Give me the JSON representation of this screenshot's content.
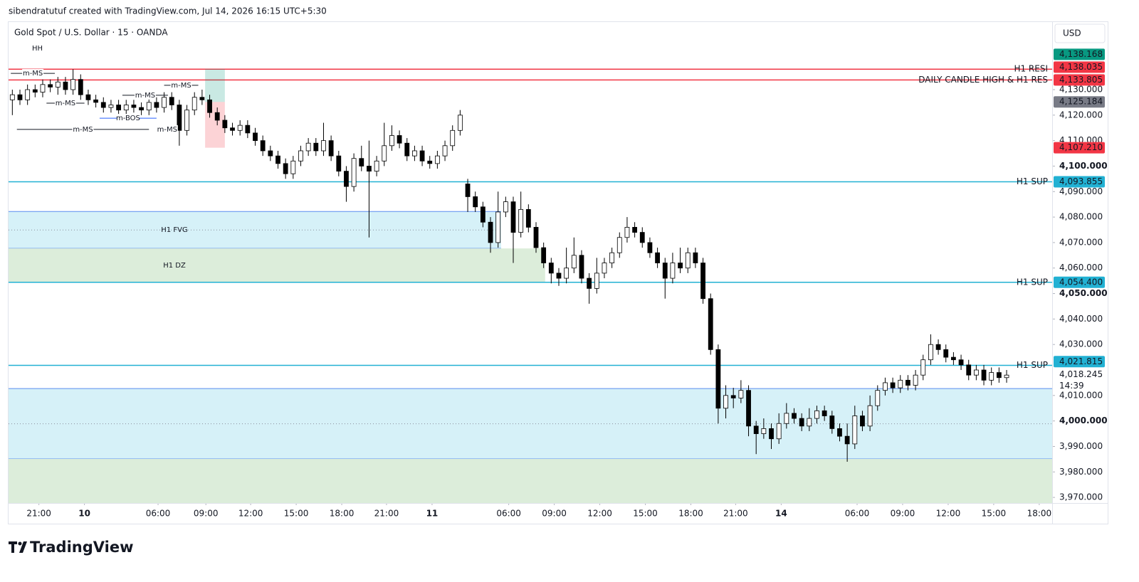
{
  "header": "sibendratutuf created with TradingView.com, Jul 14, 2026 16:15 UTC+5:30",
  "logo": "TradingView",
  "chart_data": {
    "type": "candlestick",
    "title": "Gold Spot / U.S. Dollar · 15 · OANDA",
    "currency": "USD",
    "up_color": "#ffffff",
    "down_color": "#000000",
    "border_color": "#000000",
    "label_color": "#f23645",
    "xlim": [
      -0.5,
      137
    ],
    "ylim": [
      3967.8,
      4156.8
    ],
    "xticks": [
      {
        "value": 3.5,
        "label": "21:00"
      },
      {
        "value": 9.5,
        "label": "10"
      },
      {
        "value": 19.2,
        "label": "06:00"
      },
      {
        "value": 25.5,
        "label": "09:00"
      },
      {
        "value": 31.4,
        "label": "12:00"
      },
      {
        "value": 37.4,
        "label": "15:00"
      },
      {
        "value": 43.4,
        "label": "18:00"
      },
      {
        "value": 49.3,
        "label": "21:00"
      },
      {
        "value": 55.3,
        "label": "11"
      },
      {
        "value": 65.4,
        "label": "06:00"
      },
      {
        "value": 71.4,
        "label": "09:00"
      },
      {
        "value": 77.4,
        "label": "12:00"
      },
      {
        "value": 83.4,
        "label": "15:00"
      },
      {
        "value": 89.4,
        "label": "18:00"
      },
      {
        "value": 95.3,
        "label": "21:00"
      },
      {
        "value": 101.3,
        "label": "14"
      },
      {
        "value": 111.3,
        "label": "06:00"
      },
      {
        "value": 117.3,
        "label": "09:00"
      },
      {
        "value": 123.3,
        "label": "12:00"
      },
      {
        "value": 129.3,
        "label": "15:00"
      },
      {
        "value": 135.3,
        "label": "18:00"
      }
    ],
    "yticks": [
      {
        "value": 4130,
        "label": "4,130.000"
      },
      {
        "value": 4120,
        "label": "4,120.000"
      },
      {
        "value": 4110,
        "label": "4,110.000"
      },
      {
        "value": 4100,
        "label": "4,100.000"
      },
      {
        "value": 4090,
        "label": "4,090.000"
      },
      {
        "value": 4080,
        "label": "4,080.000"
      },
      {
        "value": 4070,
        "label": "4,070.000"
      },
      {
        "value": 4060,
        "label": "4,060.000"
      },
      {
        "value": 4050,
        "label": "4,050.000"
      },
      {
        "value": 4040,
        "label": "4,040.000"
      },
      {
        "value": 4030,
        "label": "4,030.000"
      },
      {
        "value": 4010,
        "label": "4,010.000"
      },
      {
        "value": 4000,
        "label": "4,000.000"
      },
      {
        "value": 3990,
        "label": "3,990.000"
      },
      {
        "value": 3980,
        "label": "3,980.000"
      },
      {
        "value": 3970,
        "label": "3,970.000"
      }
    ],
    "ohlc": [
      [
        4126,
        4130,
        4120,
        4128
      ],
      [
        4128,
        4130,
        4124,
        4126
      ],
      [
        4126,
        4132,
        4124,
        4130
      ],
      [
        4130,
        4132,
        4127,
        4129
      ],
      [
        4129,
        4134,
        4127,
        4132
      ],
      [
        4132,
        4134,
        4129,
        4131
      ],
      [
        4131,
        4135,
        4128,
        4133
      ],
      [
        4133,
        4135,
        4128,
        4130
      ],
      [
        4130,
        4138,
        4128,
        4134
      ],
      [
        4134,
        4136,
        4126,
        4128
      ],
      [
        4128,
        4130,
        4124,
        4126
      ],
      [
        4126,
        4128,
        4123,
        4125
      ],
      [
        4125,
        4127,
        4121,
        4123
      ],
      [
        4123,
        4126,
        4121,
        4124
      ],
      [
        4124,
        4126,
        4120,
        4122
      ],
      [
        4122,
        4126,
        4120,
        4124
      ],
      [
        4124,
        4126,
        4121,
        4123
      ],
      [
        4123,
        4125,
        4120,
        4122
      ],
      [
        4122,
        4127,
        4120,
        4125
      ],
      [
        4125,
        4127,
        4121,
        4123
      ],
      [
        4123,
        4129,
        4121,
        4127
      ],
      [
        4127,
        4129,
        4122,
        4124
      ],
      [
        4124,
        4126,
        4108,
        4114
      ],
      [
        4114,
        4124,
        4112,
        4122
      ],
      [
        4122,
        4129,
        4120,
        4127
      ],
      [
        4127,
        4130,
        4124,
        4126
      ],
      [
        4126,
        4128,
        4119,
        4121
      ],
      [
        4121,
        4123,
        4116,
        4118
      ],
      [
        4118,
        4120,
        4113,
        4115
      ],
      [
        4115,
        4117,
        4112,
        4114
      ],
      [
        4114,
        4118,
        4112,
        4116
      ],
      [
        4116,
        4118,
        4111,
        4113
      ],
      [
        4113,
        4115,
        4108,
        4110
      ],
      [
        4110,
        4112,
        4104,
        4106
      ],
      [
        4106,
        4108,
        4102,
        4104
      ],
      [
        4104,
        4106,
        4099,
        4101
      ],
      [
        4101,
        4103,
        4095,
        4097
      ],
      [
        4097,
        4104,
        4095,
        4102
      ],
      [
        4102,
        4108,
        4100,
        4106
      ],
      [
        4106,
        4111,
        4104,
        4109
      ],
      [
        4109,
        4111,
        4104,
        4106
      ],
      [
        4106,
        4117,
        4104,
        4110
      ],
      [
        4110,
        4112,
        4102,
        4104
      ],
      [
        4104,
        4106,
        4096,
        4098
      ],
      [
        4098,
        4100,
        4086,
        4092
      ],
      [
        4092,
        4105,
        4090,
        4103
      ],
      [
        4103,
        4108,
        4098,
        4100
      ],
      [
        4100,
        4110,
        4072,
        4098
      ],
      [
        4098,
        4104,
        4096,
        4102
      ],
      [
        4102,
        4117,
        4100,
        4108
      ],
      [
        4108,
        4116,
        4106,
        4112
      ],
      [
        4112,
        4114,
        4107,
        4109
      ],
      [
        4109,
        4111,
        4102,
        4104
      ],
      [
        4104,
        4108,
        4102,
        4106
      ],
      [
        4106,
        4108,
        4100,
        4102
      ],
      [
        4102,
        4104,
        4099,
        4101
      ],
      [
        4101,
        4106,
        4099,
        4104
      ],
      [
        4104,
        4110,
        4102,
        4108
      ],
      [
        4108,
        4116,
        4106,
        4114
      ],
      [
        4114,
        4122,
        4112,
        4120
      ],
      [
        4093,
        4095,
        4082,
        4088
      ],
      [
        4088,
        4090,
        4082,
        4084
      ],
      [
        4084,
        4086,
        4076,
        4078
      ],
      [
        4078,
        4080,
        4066,
        4070
      ],
      [
        4070,
        4090,
        4068,
        4082
      ],
      [
        4082,
        4088,
        4080,
        4086
      ],
      [
        4086,
        4088,
        4062,
        4074
      ],
      [
        4074,
        4090,
        4072,
        4083
      ],
      [
        4083,
        4085,
        4074,
        4076
      ],
      [
        4076,
        4078,
        4066,
        4068
      ],
      [
        4068,
        4070,
        4060,
        4062
      ],
      [
        4062,
        4064,
        4054,
        4058
      ],
      [
        4058,
        4060,
        4053,
        4056
      ],
      [
        4056,
        4068,
        4054,
        4060
      ],
      [
        4060,
        4072,
        4058,
        4065
      ],
      [
        4065,
        4067,
        4054,
        4056
      ],
      [
        4056,
        4058,
        4046,
        4052
      ],
      [
        4052,
        4064,
        4050,
        4058
      ],
      [
        4058,
        4064,
        4056,
        4062
      ],
      [
        4062,
        4068,
        4060,
        4066
      ],
      [
        4066,
        4074,
        4064,
        4072
      ],
      [
        4072,
        4080,
        4070,
        4076
      ],
      [
        4076,
        4078,
        4072,
        4074
      ],
      [
        4074,
        4076,
        4068,
        4070
      ],
      [
        4070,
        4072,
        4064,
        4066
      ],
      [
        4066,
        4068,
        4060,
        4062
      ],
      [
        4062,
        4064,
        4048,
        4056
      ],
      [
        4056,
        4066,
        4054,
        4062
      ],
      [
        4062,
        4068,
        4058,
        4060
      ],
      [
        4060,
        4068,
        4058,
        4066
      ],
      [
        4066,
        4068,
        4060,
        4062
      ],
      [
        4062,
        4064,
        4046,
        4048
      ],
      [
        4048,
        4050,
        4026,
        4028
      ],
      [
        4028,
        4030,
        3999,
        4005
      ],
      [
        4005,
        4014,
        4001,
        4010
      ],
      [
        4010,
        4013,
        4005,
        4009
      ],
      [
        4009,
        4016,
        4007,
        4012
      ],
      [
        4012,
        4014,
        3994,
        3998
      ],
      [
        3998,
        4000,
        3987,
        3995
      ],
      [
        3995,
        4001,
        3993,
        3997
      ],
      [
        3997,
        3999,
        3989,
        3993
      ],
      [
        3993,
        4003,
        3991,
        3999
      ],
      [
        3999,
        4007,
        3997,
        4003
      ],
      [
        4003,
        4005,
        3999,
        4001
      ],
      [
        4001,
        4003,
        3996,
        3998
      ],
      [
        3998,
        4005,
        3996,
        4001
      ],
      [
        4001,
        4006,
        3999,
        4004
      ],
      [
        4004,
        4006,
        4000,
        4002
      ],
      [
        4002,
        4004,
        3995,
        3997
      ],
      [
        3997,
        3999,
        3992,
        3994
      ],
      [
        3994,
        3999,
        3984,
        3991
      ],
      [
        3991,
        4006,
        3989,
        4002
      ],
      [
        4002,
        4004,
        3996,
        3998
      ],
      [
        3998,
        4010,
        3996,
        4006
      ],
      [
        4006,
        4014,
        4004,
        4012
      ],
      [
        4012,
        4017,
        4010,
        4015
      ],
      [
        4015,
        4017,
        4011,
        4013
      ],
      [
        4013,
        4018,
        4011,
        4016
      ],
      [
        4016,
        4018,
        4012,
        4014
      ],
      [
        4014,
        4020,
        4012,
        4018
      ],
      [
        4018,
        4026,
        4016,
        4024
      ],
      [
        4024,
        4034,
        4022,
        4030
      ],
      [
        4030,
        4032,
        4026,
        4028
      ],
      [
        4028,
        4030,
        4023,
        4025
      ],
      [
        4025,
        4027,
        4022,
        4024
      ],
      [
        4024,
        4026,
        4020,
        4022
      ],
      [
        4022,
        4024,
        4016,
        4018
      ],
      [
        4018,
        4022,
        4016,
        4020
      ],
      [
        4020,
        4022,
        4014,
        4016
      ],
      [
        4016,
        4021,
        4014,
        4019
      ],
      [
        4019,
        4021,
        4015,
        4017
      ],
      [
        4017,
        4020,
        4015,
        4018
      ]
    ],
    "zones": [
      {
        "name": "H1 FVG",
        "top": 4082.2,
        "bottom": 4067.7,
        "x_end": 64.4,
        "color": "#d6f1f8",
        "border": "#5b8def",
        "midline": true
      },
      {
        "name": "H1 DZ",
        "top": 4067.7,
        "bottom": 4054.4,
        "x_end": 70.2,
        "color": "#dcedda"
      },
      {
        "top": 4012.7,
        "bottom": 3985.1,
        "color": "#d6f1f8",
        "border": "#5b8def",
        "midline": true
      },
      {
        "top": 3985.1,
        "bottom": 3967.8,
        "color": "#dcedda"
      }
    ],
    "levels": [
      {
        "name": "H1 RESI",
        "value": 4138.035,
        "label": "4,138.035",
        "color": "#f23645"
      },
      {
        "name": "DAILY CANDLE HIGH & H1 RES",
        "value": 4133.805,
        "label": "4,133.805",
        "color": "#f23645"
      },
      {
        "name": "H1 SUP",
        "value": 4093.855,
        "label": "4,093.855",
        "color": "#22b1d3"
      },
      {
        "name": "H1 SUP",
        "value": 4054.4,
        "label": "4,054.400",
        "color": "#22b1d3"
      },
      {
        "name": "H1 SUP",
        "value": 4021.815,
        "label": "4,021.815",
        "color": "#22b1d3"
      }
    ],
    "position": {
      "x_span": [
        25.4,
        28
      ],
      "target": {
        "value": 4138.168,
        "label": "4,138.168",
        "color": "#089981"
      },
      "entry": {
        "value": 4125.184,
        "label": "4,125.184",
        "color": "#787b86"
      },
      "stop": {
        "value": 4107.21,
        "label": "4,107.210",
        "color": "#f23645"
      }
    },
    "last_price": {
      "value": 4018.245,
      "label": "4,018.245",
      "countdown": "14:39"
    },
    "structures": [
      {
        "text": "m-MS",
        "level": 4136.4,
        "x_span": [
          -0.2,
          5.6
        ]
      },
      {
        "text": "m-MS",
        "level": 4127.8,
        "x_span": [
          14.5,
          20.5
        ]
      },
      {
        "text": "m-MS",
        "level": 4124.7,
        "x_span": [
          4.5,
          9.5
        ]
      },
      {
        "text": "m-BOS",
        "level": 4118.8,
        "x_span": [
          11.5,
          19
        ]
      },
      {
        "text": "m-MS",
        "level": 4114.4,
        "x_span": [
          0.6,
          18
        ]
      },
      {
        "text": "m-MS",
        "level": 4114.4,
        "x_span": [
          19.2,
          21.6
        ]
      },
      {
        "text": "m-MS",
        "level": 4131.7,
        "x_span": [
          20,
          24.5
        ]
      }
    ],
    "texts": [
      {
        "text": "HH",
        "x": 3.3,
        "level": 4146.2
      }
    ]
  }
}
